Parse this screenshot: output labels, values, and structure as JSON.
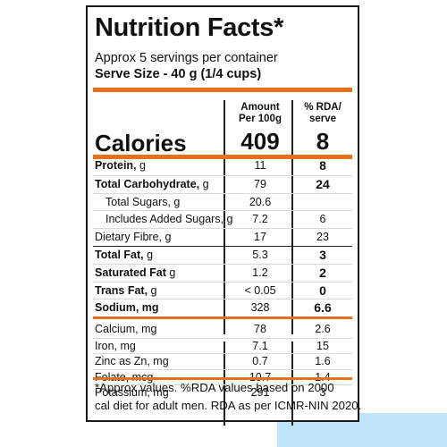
{
  "title": "Nutrition Facts*",
  "servings": "Approx 5 servings per container",
  "serve_size": "Serve Size - 40 g (1/4 cups)",
  "columns": {
    "amount_line1": "Amount",
    "amount_line2": "Per 100g",
    "rda_line1": "% RDA/",
    "rda_line2": "serve"
  },
  "calories": {
    "label": "Calories",
    "amount": "409",
    "rda": "8"
  },
  "nutrients": [
    {
      "bold": "Protein,",
      "unit": " g",
      "amount": "11",
      "rda": "8"
    },
    {
      "bold": "Total Carbohydrate,",
      "unit": " g",
      "amount": "79",
      "rda": "24"
    },
    {
      "bold": "",
      "unit": "Total Sugars, g",
      "amount": "20.6",
      "rda": ""
    },
    {
      "bold": "",
      "unit": "Includes Added Sugars, g",
      "amount": "7.2",
      "rda": "6"
    },
    {
      "bold": "",
      "unit": "Dietary Fibre, g",
      "amount": "17",
      "rda": "23"
    },
    {
      "bold": "Total Fat,",
      "unit": " g",
      "amount": "5.3",
      "rda": "3"
    },
    {
      "bold": "Saturated Fat",
      "unit": " g",
      "amount": "1.2",
      "rda": "2"
    },
    {
      "bold": "Trans Fat,",
      "unit": " g",
      "amount": "< 0.05",
      "rda": "0"
    },
    {
      "bold": "Sodium, mg",
      "unit": "",
      "amount": "328",
      "rda": "6.6"
    }
  ],
  "minerals": [
    {
      "name": "Calcium, mg",
      "amount": "78",
      "rda": "2.6"
    },
    {
      "name": "Iron, mg",
      "amount": "7.1",
      "rda": "15"
    },
    {
      "name": "Zinc as Zn, mg",
      "amount": "0.7",
      "rda": "1.6"
    },
    {
      "name": "Folate, mcg",
      "amount": "10.7",
      "rda": "1.4"
    },
    {
      "name": "Potassium, mg",
      "amount": "291",
      "rda": "3"
    }
  ],
  "footnote": {
    "line1": "*Approx values. %RDA values based on 2000",
    "line2": "cal diet for adult men. RDA as per ICMR-NIN 2020."
  },
  "colors": {
    "accent": "#e8701d",
    "corner_tint": "#bfe4f7",
    "border": "#1a1a1a"
  }
}
